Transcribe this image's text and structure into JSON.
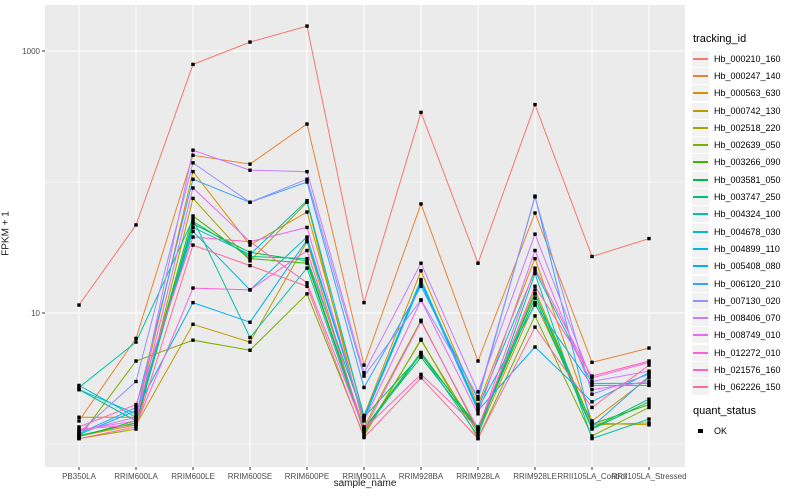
{
  "figure": {
    "background": "#FFFFFF",
    "panel_background": "#EBEBEB",
    "grid_color": "#FFFFFF",
    "tick_text_color": "#4D4D4D",
    "marker_color": "#000000"
  },
  "chart_data": {
    "type": "line",
    "title": "",
    "xlabel": "sample_name",
    "ylabel": "FPKM + 1",
    "y_scale": "log10",
    "legend_position": "right",
    "grid": true,
    "y_ticks": [
      {
        "label": "1000",
        "value": 1000
      },
      {
        "label": "10",
        "value": 10
      }
    ],
    "y_minor": [
      100,
      1
    ],
    "categories": [
      "PB350LA",
      "RRIM600LA",
      "RRIM600LE",
      "RRIM600SE",
      "RRIM600PE",
      "RRIM901LA",
      "RRIM928BA",
      "RRIM928LA",
      "RRIM928LE",
      "RRII105LA_Control",
      "RRII105LA_Stressed"
    ],
    "legend_title": "tracking_id",
    "legend2_title": "quant_status",
    "legend2_items": [
      {
        "label": "OK"
      }
    ],
    "series": [
      {
        "name": "Hb_000210_160",
        "color": "#F8766D",
        "values": [
          11.5,
          47,
          790,
          1170,
          1550,
          12,
          340,
          24,
          390,
          27,
          37
        ]
      },
      {
        "name": "Hb_000247_140",
        "color": "#EA8331",
        "values": [
          1.5,
          6.4,
          160,
          137,
          277,
          4.0,
          68,
          4.3,
          58,
          4.2,
          5.4
        ]
      },
      {
        "name": "Hb_000563_630",
        "color": "#D89000",
        "values": [
          1.6,
          1.6,
          120,
          33,
          59,
          1.65,
          21,
          2.0,
          26,
          1.5,
          3.2
        ]
      },
      {
        "name": "Hb_000742_130",
        "color": "#C09B00",
        "values": [
          1.15,
          1.4,
          8.2,
          6.0,
          35,
          1.2,
          6.2,
          1.2,
          12,
          1.45,
          1.4
        ]
      },
      {
        "name": "Hb_002518_220",
        "color": "#A3A500",
        "values": [
          1.1,
          1.3,
          75,
          25,
          70,
          1.35,
          8.8,
          1.25,
          15,
          1.4,
          1.45
        ]
      },
      {
        "name": "Hb_002639_050",
        "color": "#7CAE00",
        "values": [
          1.12,
          4.3,
          6.2,
          5.2,
          14,
          1.15,
          6.3,
          1.1,
          9.5,
          1.15,
          1.9
        ]
      },
      {
        "name": "Hb_003266_090",
        "color": "#39B600",
        "values": [
          1.14,
          1.5,
          55,
          26,
          24,
          1.3,
          5.0,
          1.3,
          14,
          1.42,
          2.0
        ]
      },
      {
        "name": "Hb_003581_050",
        "color": "#00BB4E",
        "values": [
          1.16,
          1.45,
          48,
          29,
          25,
          1.32,
          4.6,
          1.28,
          13,
          1.3,
          2.1
        ]
      },
      {
        "name": "Hb_003747_250",
        "color": "#00BF7D",
        "values": [
          2.6,
          1.5,
          50,
          27,
          26,
          1.6,
          4.8,
          1.35,
          14,
          1.32,
          2.2
        ]
      },
      {
        "name": "Hb_004324_100",
        "color": "#00C1A3",
        "values": [
          2.7,
          6.0,
          52,
          6.5,
          22,
          1.25,
          4.9,
          1.15,
          20,
          1.1,
          1.55
        ]
      },
      {
        "name": "Hb_004678_030",
        "color": "#00BFC4",
        "values": [
          2.8,
          1.6,
          45,
          28,
          72,
          1.62,
          18,
          1.9,
          21,
          2.9,
          2.9
        ]
      },
      {
        "name": "Hb_004899_110",
        "color": "#00BAE0",
        "values": [
          2.6,
          1.7,
          42,
          15,
          38,
          1.58,
          17.5,
          1.85,
          11.5,
          2.8,
          2.8
        ]
      },
      {
        "name": "Hb_005408_080",
        "color": "#00B0F6",
        "values": [
          1.18,
          1.8,
          12,
          8.5,
          36,
          1.55,
          17,
          1.8,
          5.5,
          2.1,
          3.5
        ]
      },
      {
        "name": "Hb_006120_210",
        "color": "#35A2FF",
        "values": [
          1.2,
          1.9,
          105,
          70,
          100,
          2.7,
          16,
          2.2,
          78,
          1.35,
          3.3
        ]
      },
      {
        "name": "Hb_007130_020",
        "color": "#9590FF",
        "values": [
          1.22,
          3.0,
          140,
          70,
          105,
          3.3,
          12.6,
          2.3,
          77,
          2.4,
          3.4
        ]
      },
      {
        "name": "Hb_008406_070",
        "color": "#C77CFF",
        "values": [
          1.25,
          1.6,
          175,
          123,
          120,
          3.5,
          24,
          2.5,
          40,
          3.0,
          3.6
        ]
      },
      {
        "name": "Hb_008749_010",
        "color": "#E76BF3",
        "values": [
          1.28,
          1.5,
          90,
          35,
          45,
          1.5,
          12.5,
          1.7,
          30,
          2.6,
          3.0
        ]
      },
      {
        "name": "Hb_012272_010",
        "color": "#FA62DB",
        "values": [
          1.3,
          1.4,
          15.5,
          15,
          30,
          1.28,
          8.6,
          1.3,
          22,
          3.2,
          4.2
        ]
      },
      {
        "name": "Hb_021576_160",
        "color": "#FF62BC",
        "values": [
          1.35,
          2.0,
          38,
          35,
          17,
          1.3,
          3.4,
          1.32,
          16,
          3.3,
          4.3
        ]
      },
      {
        "name": "Hb_062226_150",
        "color": "#FF6A98",
        "values": [
          1.1,
          1.35,
          33,
          23,
          16,
          1.12,
          3.2,
          1.1,
          7.8,
          1.9,
          4.0
        ]
      }
    ]
  }
}
